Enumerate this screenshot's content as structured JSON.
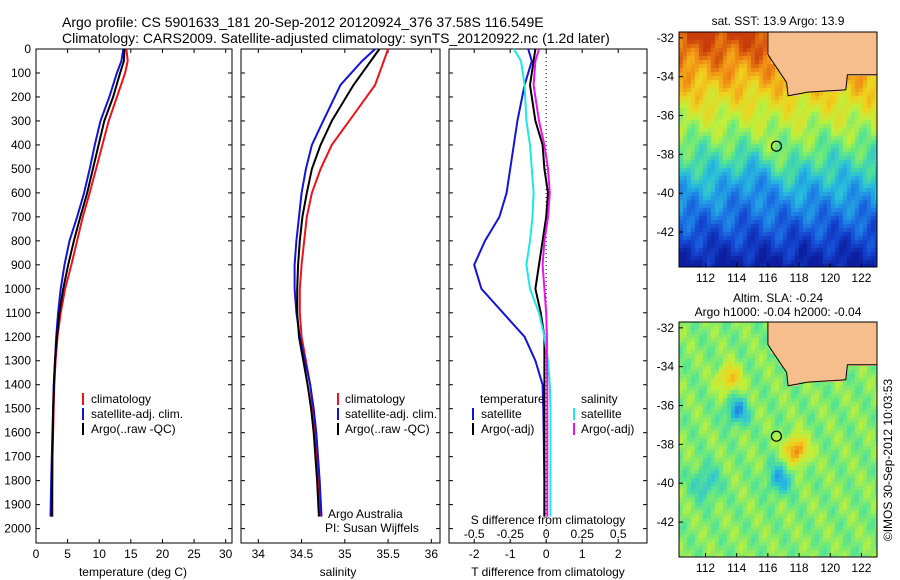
{
  "header": {
    "line1": "Argo profile: CS 5901633_181 20-Sep-2012 20120924_376 37.58S 116.549E",
    "line2": "Climatology: CARS2009. Satellite-adjusted climatology: synTS_20120922.nc (1.2d later)"
  },
  "footer": {
    "vertical_text": "©IMOS 30-Sep-2012 10:03:53"
  },
  "colors": {
    "red": "#e8141e",
    "blue": "#1414d2",
    "black": "#000000",
    "cyan": "#1fe6e6",
    "magenta": "#e614e6",
    "land": "#f5be8c"
  },
  "chart_data": [
    {
      "type": "line",
      "id": "temperature",
      "xlabel": "temperature (deg C)",
      "ylabel": "",
      "xlim": [
        0,
        31
      ],
      "ylim": [
        2060,
        0
      ],
      "xticks": [
        0,
        5,
        10,
        15,
        20,
        25,
        30
      ],
      "yticks": [
        0,
        100,
        200,
        300,
        400,
        500,
        600,
        700,
        800,
        900,
        1000,
        1100,
        1200,
        1300,
        1400,
        1500,
        1600,
        1700,
        1800,
        1900,
        2000
      ],
      "legend": [
        "climatology",
        "satellite-adj. clim.",
        "Argo(..raw -QC)"
      ],
      "series": [
        {
          "name": "climatology",
          "color": "red",
          "x": [
            14.3,
            14.5,
            14.1,
            12.8,
            11.5,
            10.5,
            9.5,
            8.5,
            7.4,
            6.5,
            5.6,
            4.6,
            3.9,
            3.4,
            3.1,
            2.9,
            2.8,
            2.7,
            2.6,
            2.6,
            2.6
          ],
          "y": [
            0,
            50,
            100,
            200,
            300,
            400,
            500,
            600,
            700,
            800,
            900,
            1000,
            1100,
            1200,
            1300,
            1400,
            1500,
            1600,
            1700,
            1800,
            1950
          ]
        },
        {
          "name": "satellite-adj. clim.",
          "color": "blue",
          "x": [
            13.8,
            13.5,
            12.8,
            11.6,
            10.2,
            9.3,
            8.5,
            7.6,
            6.5,
            5.3,
            4.5,
            3.9,
            3.5,
            3.2,
            3.0,
            2.8,
            2.7,
            2.6,
            2.5,
            2.4,
            2.3
          ],
          "y": [
            0,
            50,
            100,
            200,
            300,
            400,
            500,
            600,
            700,
            800,
            900,
            1000,
            1100,
            1200,
            1300,
            1400,
            1500,
            1600,
            1700,
            1800,
            1950
          ]
        },
        {
          "name": "Argo(..raw -QC)",
          "color": "black",
          "x": [
            14.0,
            13.9,
            13.3,
            12.2,
            10.8,
            9.9,
            9.0,
            8.1,
            7.0,
            6.0,
            5.1,
            4.3,
            3.7,
            3.3,
            3.0,
            2.85,
            2.7,
            2.65,
            2.6,
            2.55,
            2.5
          ],
          "y": [
            0,
            50,
            100,
            200,
            300,
            400,
            500,
            600,
            700,
            800,
            900,
            1000,
            1100,
            1200,
            1300,
            1400,
            1500,
            1600,
            1700,
            1800,
            1950
          ]
        }
      ]
    },
    {
      "type": "line",
      "id": "salinity",
      "xlabel": "salinity",
      "ylabel": "",
      "xlim": [
        33.8,
        36.1
      ],
      "ylim": [
        2060,
        0
      ],
      "xticks": [
        34,
        34.5,
        35,
        35.5,
        36
      ],
      "legend": [
        "climatology",
        "satellite-adj. clim.",
        "Argo(..raw -QC)"
      ],
      "annotations": [
        "Argo Australia",
        "PI: Susan Wijffels"
      ],
      "series": [
        {
          "name": "climatology",
          "color": "red",
          "x": [
            35.5,
            35.45,
            35.35,
            35.05,
            34.85,
            34.72,
            34.62,
            34.56,
            34.53,
            34.5,
            34.48,
            34.48,
            34.5,
            34.55,
            34.6,
            34.63,
            34.66,
            34.68,
            34.7,
            34.72
          ],
          "y": [
            0,
            50,
            150,
            300,
            400,
            500,
            600,
            700,
            800,
            900,
            1000,
            1100,
            1200,
            1300,
            1400,
            1500,
            1600,
            1700,
            1800,
            1950
          ]
        },
        {
          "name": "satellite-adj. clim.",
          "color": "blue",
          "x": [
            35.35,
            35.2,
            34.95,
            34.75,
            34.62,
            34.55,
            34.5,
            34.47,
            34.44,
            34.42,
            34.42,
            34.44,
            34.48,
            34.54,
            34.6,
            34.64,
            34.67,
            34.69,
            34.71,
            34.73
          ],
          "y": [
            0,
            50,
            150,
            300,
            400,
            500,
            600,
            700,
            800,
            900,
            1000,
            1100,
            1200,
            1300,
            1400,
            1500,
            1600,
            1700,
            1800,
            1950
          ]
        },
        {
          "name": "Argo(..raw -QC)",
          "color": "black",
          "x": [
            35.4,
            35.3,
            35.1,
            34.85,
            34.72,
            34.62,
            34.56,
            34.51,
            34.48,
            34.46,
            34.45,
            34.45,
            34.47,
            34.52,
            34.57,
            34.61,
            34.64,
            34.66,
            34.68,
            34.7
          ],
          "y": [
            0,
            50,
            150,
            300,
            400,
            500,
            600,
            700,
            800,
            900,
            1000,
            1100,
            1200,
            1300,
            1400,
            1500,
            1600,
            1700,
            1800,
            1950
          ]
        }
      ]
    },
    {
      "type": "line",
      "id": "difference",
      "xlabel": "T difference from climatology",
      "top_label": "S difference from climatology",
      "xlim": [
        -2.7,
        2.8
      ],
      "ylim": [
        2060,
        0
      ],
      "xticks": [
        -2,
        -1,
        0,
        1,
        2
      ],
      "top_ticks": [
        "-0.5",
        "-0.25",
        "0",
        "0.25",
        "0.5"
      ],
      "legend_titles": [
        "temperature",
        "salinity"
      ],
      "legend": [
        "satellite",
        "Argo(-adj)",
        "satellite",
        "Argo(-adj)"
      ],
      "series": [
        {
          "name": "satellite",
          "quantity": "temperature",
          "color": "blue",
          "x": [
            -0.5,
            -0.4,
            -0.6,
            -0.8,
            -0.9,
            -1.0,
            -1.1,
            -1.3,
            -1.7,
            -2.0,
            -1.8,
            -1.2,
            -0.6,
            -0.3,
            -0.1,
            -0.08,
            -0.07,
            -0.06,
            -0.05,
            -0.05
          ],
          "y": [
            0,
            50,
            150,
            300,
            400,
            500,
            600,
            700,
            800,
            900,
            1000,
            1100,
            1200,
            1300,
            1400,
            1500,
            1600,
            1700,
            1800,
            1950
          ]
        },
        {
          "name": "Argo(-adj)",
          "quantity": "temperature",
          "color": "black",
          "x": [
            -0.3,
            -0.35,
            -0.45,
            -0.3,
            -0.1,
            -0.05,
            0.05,
            0.0,
            -0.1,
            -0.2,
            -0.3,
            -0.15,
            -0.05,
            -0.05,
            -0.05,
            -0.05,
            -0.05,
            -0.05,
            -0.05,
            -0.05
          ],
          "y": [
            0,
            50,
            150,
            300,
            400,
            500,
            600,
            700,
            800,
            900,
            1000,
            1100,
            1200,
            1300,
            1400,
            1500,
            1600,
            1700,
            1800,
            1950
          ]
        },
        {
          "name": "satellite",
          "quantity": "salinity",
          "color": "cyan",
          "x": [
            -0.9,
            -0.7,
            -0.6,
            -0.55,
            -0.45,
            -0.4,
            -0.35,
            -0.38,
            -0.45,
            -0.55,
            -0.45,
            -0.2,
            -0.05,
            0.05,
            0.1,
            0.12,
            0.12,
            0.12,
            0.12
          ],
          "y": [
            0,
            50,
            150,
            300,
            400,
            500,
            600,
            700,
            800,
            900,
            1000,
            1100,
            1200,
            1300,
            1400,
            1500,
            1600,
            1700,
            1950
          ]
        },
        {
          "name": "Argo(-adj)",
          "quantity": "salinity",
          "color": "magenta",
          "x": [
            -0.2,
            -0.3,
            -0.35,
            -0.2,
            -0.05,
            0.05,
            0.1,
            0.05,
            -0.05,
            -0.1,
            -0.05,
            0.0,
            0.02,
            0.02,
            0.03,
            0.03,
            0.03,
            0.03,
            0.03
          ],
          "y": [
            0,
            50,
            150,
            300,
            400,
            500,
            600,
            700,
            800,
            900,
            1000,
            1100,
            1200,
            1300,
            1400,
            1500,
            1600,
            1700,
            1950
          ]
        }
      ]
    },
    {
      "type": "heatmap",
      "id": "sst_map",
      "title": "sat. SST: 13.9 Argo: 13.9",
      "xlim": [
        110.3,
        123
      ],
      "ylim": [
        -43.8,
        -31.7
      ],
      "xticks": [
        112,
        114,
        116,
        118,
        120,
        122
      ],
      "yticks": [
        -32,
        -34,
        -36,
        -38,
        -40,
        -42
      ],
      "marker": {
        "lon": 116.549,
        "lat": -37.58
      }
    },
    {
      "type": "heatmap",
      "id": "sla_map",
      "title_line1": "Altim. SLA: -0.24",
      "title_line2": "Argo h1000: -0.04 h2000: -0.04",
      "xlim": [
        110.3,
        123
      ],
      "ylim": [
        -43.8,
        -31.7
      ],
      "xticks": [
        112,
        114,
        116,
        118,
        120,
        122
      ],
      "yticks": [
        -32,
        -34,
        -36,
        -38,
        -40,
        -42
      ],
      "marker": {
        "lon": 116.549,
        "lat": -37.58
      }
    }
  ]
}
